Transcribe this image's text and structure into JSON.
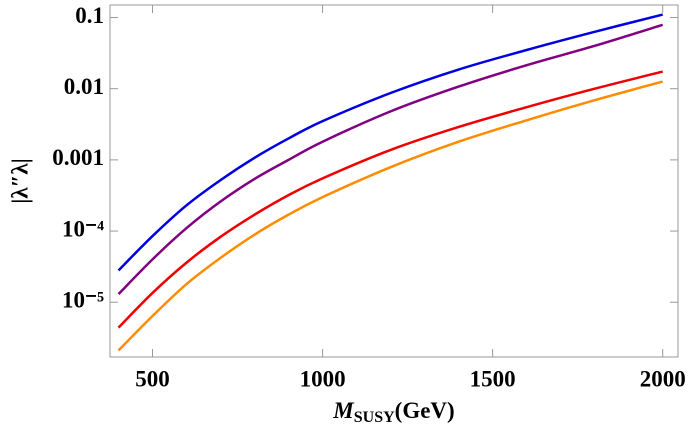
{
  "chart_data": {
    "type": "line",
    "y_label": "|λ″λ|",
    "x_label": {
      "symbol": "M",
      "subscript": "SUSY",
      "unit": "(GeV)"
    },
    "x": [
      400,
      500,
      600,
      700,
      800,
      900,
      1000,
      1200,
      1400,
      1600,
      1800,
      2000
    ],
    "series": [
      {
        "color": "#0000e0",
        "values": [
          2.8e-05,
          8.5e-05,
          0.00023,
          0.00052,
          0.00107,
          0.002,
          0.0035,
          0.0087,
          0.0186,
          0.035,
          0.063,
          0.11
        ]
      },
      {
        "color": "#800080",
        "values": [
          1.3e-05,
          4e-05,
          0.00011,
          0.00026,
          0.00054,
          0.001,
          0.0018,
          0.0048,
          0.0107,
          0.0214,
          0.04,
          0.079
        ]
      },
      {
        "color": "#ee0000",
        "values": [
          4.4e-06,
          1.35e-05,
          3.6e-05,
          8.3e-05,
          0.00017,
          0.00032,
          0.00055,
          0.00138,
          0.0029,
          0.0055,
          0.01,
          0.0174
        ]
      },
      {
        "color": "#ff8c00",
        "values": [
          2.1e-06,
          6.4e-06,
          1.8e-05,
          4.2e-05,
          8.9e-05,
          0.00017,
          0.0003,
          0.00079,
          0.0018,
          0.0036,
          0.0069,
          0.0126
        ]
      }
    ],
    "xlim": [
      375,
      2045
    ],
    "xticks": [
      500,
      1000,
      1500,
      2000
    ],
    "ylim": [
      1.7e-06,
      0.15
    ],
    "log_y": true,
    "yticks": [
      {
        "value": 1e-05,
        "label": "10⁻⁵"
      },
      {
        "value": 0.0001,
        "label": "10⁻⁴"
      },
      0.001,
      0.01,
      0.1
    ]
  }
}
